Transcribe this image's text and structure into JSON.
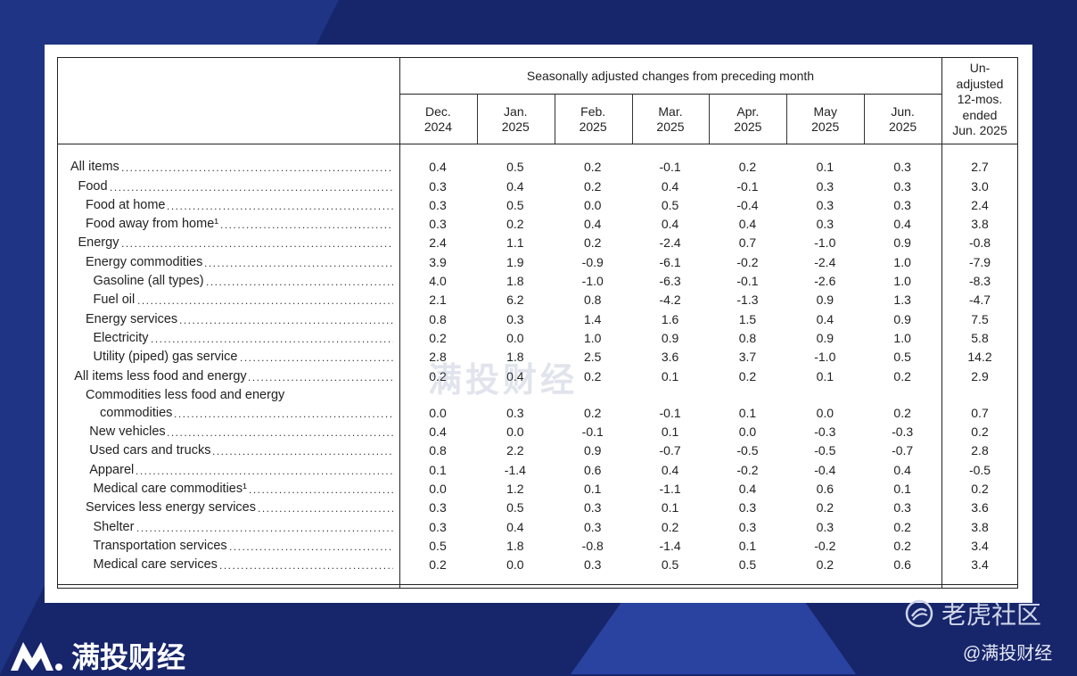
{
  "header": {
    "group_label": "Seasonally adjusted changes from preceding month",
    "months": [
      [
        "Dec.",
        "2024"
      ],
      [
        "Jan.",
        "2025"
      ],
      [
        "Feb.",
        "2025"
      ],
      [
        "Mar.",
        "2025"
      ],
      [
        "Apr.",
        "2025"
      ],
      [
        "May",
        "2025"
      ],
      [
        "Jun.",
        "2025"
      ]
    ],
    "unadjusted_label": [
      "Un-",
      "adjusted",
      "12-mos.",
      "ended",
      "Jun. 2025"
    ]
  },
  "rows": [
    {
      "label": "All items",
      "indent": 0,
      "values": [
        "0.4",
        "0.5",
        "0.2",
        "-0.1",
        "0.2",
        "0.1",
        "0.3",
        "2.7"
      ]
    },
    {
      "label": "Food",
      "indent": 1,
      "values": [
        "0.3",
        "0.4",
        "0.2",
        "0.4",
        "-0.1",
        "0.3",
        "0.3",
        "3.0"
      ]
    },
    {
      "label": "Food at home",
      "indent": 2,
      "values": [
        "0.3",
        "0.5",
        "0.0",
        "0.5",
        "-0.4",
        "0.3",
        "0.3",
        "2.4"
      ]
    },
    {
      "label": "Food away from home¹",
      "indent": 2,
      "values": [
        "0.3",
        "0.2",
        "0.4",
        "0.4",
        "0.4",
        "0.3",
        "0.4",
        "3.8"
      ]
    },
    {
      "label": "Energy",
      "indent": 1,
      "values": [
        "2.4",
        "1.1",
        "0.2",
        "-2.4",
        "0.7",
        "-1.0",
        "0.9",
        "-0.8"
      ]
    },
    {
      "label": "Energy commodities",
      "indent": 2,
      "values": [
        "3.9",
        "1.9",
        "-0.9",
        "-6.1",
        "-0.2",
        "-2.4",
        "1.0",
        "-7.9"
      ]
    },
    {
      "label": "Gasoline (all types)",
      "indent": 3,
      "values": [
        "4.0",
        "1.8",
        "-1.0",
        "-6.3",
        "-0.1",
        "-2.6",
        "1.0",
        "-8.3"
      ]
    },
    {
      "label": "Fuel oil",
      "indent": 3,
      "values": [
        "2.1",
        "6.2",
        "0.8",
        "-4.2",
        "-1.3",
        "0.9",
        "1.3",
        "-4.7"
      ]
    },
    {
      "label": "Energy services",
      "indent": 2,
      "values": [
        "0.8",
        "0.3",
        "1.4",
        "1.6",
        "1.5",
        "0.4",
        "0.9",
        "7.5"
      ]
    },
    {
      "label": "Electricity",
      "indent": 3,
      "values": [
        "0.2",
        "0.0",
        "1.0",
        "0.9",
        "0.8",
        "0.9",
        "1.0",
        "5.8"
      ]
    },
    {
      "label": "Utility (piped) gas service",
      "indent": 3,
      "values": [
        "2.8",
        "1.8",
        "2.5",
        "3.6",
        "3.7",
        "-1.0",
        "0.5",
        "14.2"
      ]
    },
    {
      "label": "All items less food and energy",
      "indent": 0.5,
      "values": [
        "0.2",
        "0.4",
        "0.2",
        "0.1",
        "0.2",
        "0.1",
        "0.2",
        "2.9"
      ]
    },
    {
      "label": "Commodities less food and energy",
      "label2": "commodities",
      "indent": 2,
      "values": [
        "0.0",
        "0.3",
        "0.2",
        "-0.1",
        "0.1",
        "0.0",
        "0.2",
        "0.7"
      ]
    },
    {
      "label": "New vehicles",
      "indent": 2.5,
      "values": [
        "0.4",
        "0.0",
        "-0.1",
        "0.1",
        "0.0",
        "-0.3",
        "-0.3",
        "0.2"
      ]
    },
    {
      "label": "Used cars and trucks",
      "indent": 2.5,
      "values": [
        "0.8",
        "2.2",
        "0.9",
        "-0.7",
        "-0.5",
        "-0.5",
        "-0.7",
        "2.8"
      ]
    },
    {
      "label": "Apparel",
      "indent": 2.5,
      "values": [
        "0.1",
        "-1.4",
        "0.6",
        "0.4",
        "-0.2",
        "-0.4",
        "0.4",
        "-0.5"
      ]
    },
    {
      "label": "Medical care commodities¹",
      "indent": 3,
      "values": [
        "0.0",
        "1.2",
        "0.1",
        "-1.1",
        "0.4",
        "0.6",
        "0.1",
        "0.2"
      ]
    },
    {
      "label": "Services less energy services",
      "indent": 2,
      "values": [
        "0.3",
        "0.5",
        "0.3",
        "0.1",
        "0.3",
        "0.2",
        "0.3",
        "3.6"
      ]
    },
    {
      "label": "Shelter",
      "indent": 3,
      "values": [
        "0.3",
        "0.4",
        "0.3",
        "0.2",
        "0.3",
        "0.3",
        "0.2",
        "3.8"
      ]
    },
    {
      "label": "Transportation services",
      "indent": 3,
      "values": [
        "0.5",
        "1.8",
        "-0.8",
        "-1.4",
        "0.1",
        "-0.2",
        "0.2",
        "3.4"
      ]
    },
    {
      "label": "Medical care services",
      "indent": 3,
      "values": [
        "0.2",
        "0.0",
        "0.3",
        "0.5",
        "0.5",
        "0.2",
        "0.6",
        "3.4"
      ]
    }
  ],
  "watermark": "满投财经",
  "footer": {
    "brand": "满投财经",
    "tiger": "老虎社区",
    "handle": "@满投财经"
  },
  "colors": {
    "background": "#17266b",
    "panel": "#ffffff",
    "text": "#222222"
  }
}
